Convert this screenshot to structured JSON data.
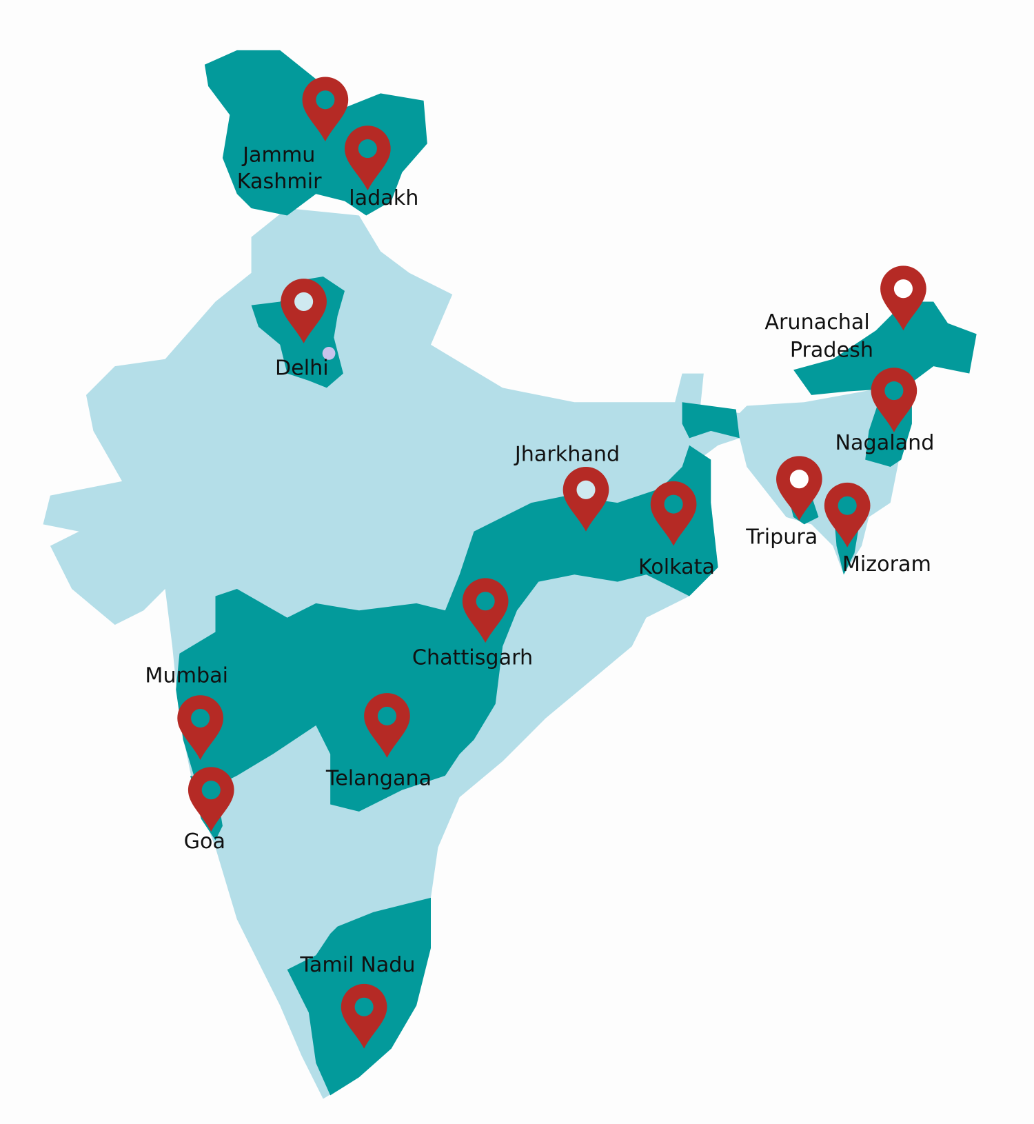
{
  "colors": {
    "background": "#fdfdfd",
    "country_fill": "#b4dee8",
    "highlight_fill": "#039a9b",
    "pin": "#b52a25",
    "delhi_region": "#c9c3ec"
  },
  "locations": [
    {
      "id": "jammu-kashmir",
      "lines": [
        "Jammu",
        "Kashmir"
      ],
      "pin_center": "teal"
    },
    {
      "id": "ladakh",
      "lines": [
        "ladakh"
      ],
      "pin_center": "teal"
    },
    {
      "id": "delhi",
      "lines": [
        "Delhi"
      ],
      "pin_center": "light"
    },
    {
      "id": "arunachal-pradesh",
      "lines": [
        "Arunachal",
        "Pradesh"
      ],
      "pin_center": "white"
    },
    {
      "id": "nagaland",
      "lines": [
        "Nagaland"
      ],
      "pin_center": "teal"
    },
    {
      "id": "jharkhand",
      "lines": [
        "Jharkhand"
      ],
      "pin_center": "light"
    },
    {
      "id": "kolkata",
      "lines": [
        "Kolkata"
      ],
      "pin_center": "teal"
    },
    {
      "id": "tripura",
      "lines": [
        "Tripura"
      ],
      "pin_center": "white"
    },
    {
      "id": "mizoram",
      "lines": [
        "Mizoram"
      ],
      "pin_center": "teal"
    },
    {
      "id": "chattisgarh",
      "lines": [
        "Chattisgarh"
      ],
      "pin_center": "teal"
    },
    {
      "id": "mumbai",
      "lines": [
        "Mumbai"
      ],
      "pin_center": "teal"
    },
    {
      "id": "goa",
      "lines": [
        "Goa"
      ],
      "pin_center": "teal"
    },
    {
      "id": "telangana",
      "lines": [
        "Telangana"
      ],
      "pin_center": "teal"
    },
    {
      "id": "tamil-nadu",
      "lines": [
        "Tamil Nadu"
      ],
      "pin_center": "teal"
    }
  ]
}
